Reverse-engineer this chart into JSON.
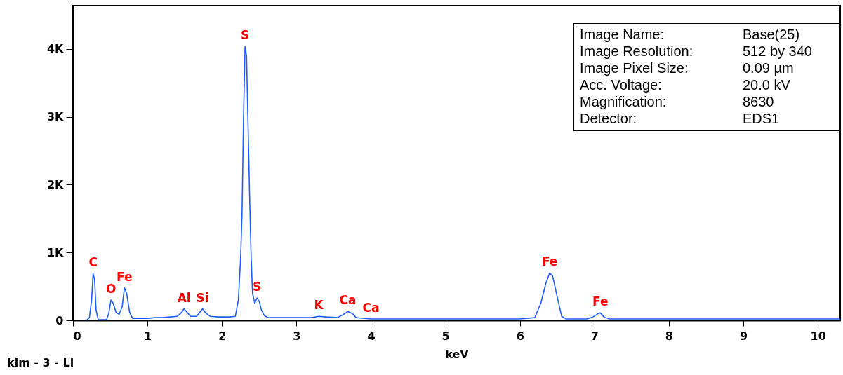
{
  "chart_data": {
    "type": "line",
    "xlabel": "keV",
    "xlim": [
      0,
      10.3
    ],
    "xticks": [
      0,
      1,
      2,
      3,
      4,
      5,
      6,
      7,
      8,
      9,
      10
    ],
    "ylim": [
      0,
      4640
    ],
    "yticks": [
      0,
      {
        "value": 1000,
        "label": "1K"
      },
      {
        "value": 2000,
        "label": "2K"
      },
      {
        "value": 3000,
        "label": "3K"
      },
      {
        "value": 4000,
        "label": "4K"
      }
    ],
    "grid": false,
    "marker": "none",
    "line_style": "solid",
    "x": [
      0.18,
      0.22,
      0.25,
      0.27,
      0.29,
      0.31,
      0.34,
      0.45,
      0.48,
      0.51,
      0.54,
      0.58,
      0.62,
      0.66,
      0.69,
      0.72,
      0.76,
      0.8,
      0.9,
      1.0,
      1.1,
      1.2,
      1.3,
      1.4,
      1.46,
      1.49,
      1.53,
      1.58,
      1.66,
      1.71,
      1.74,
      1.78,
      1.84,
      1.95,
      2.1,
      2.18,
      2.22,
      2.25,
      2.27,
      2.29,
      2.31,
      2.33,
      2.35,
      2.37,
      2.39,
      2.41,
      2.44,
      2.47,
      2.5,
      2.53,
      2.57,
      2.62,
      2.8,
      3.0,
      3.2,
      3.3,
      3.4,
      3.55,
      3.62,
      3.69,
      3.75,
      3.8,
      4.0,
      4.5,
      5.0,
      5.5,
      6.0,
      6.2,
      6.28,
      6.35,
      6.4,
      6.44,
      6.5,
      6.56,
      6.62,
      6.9,
      6.98,
      7.05,
      7.08,
      7.13,
      7.2,
      7.5,
      8,
      8.5,
      9,
      9.5,
      10,
      10.3
    ],
    "series": [
      {
        "color": "#1f5cff",
        "values": [
          0,
          40,
          300,
          690,
          600,
          150,
          10,
          10,
          100,
          300,
          250,
          110,
          90,
          200,
          480,
          400,
          120,
          30,
          30,
          30,
          40,
          40,
          50,
          60,
          120,
          170,
          120,
          60,
          60,
          130,
          170,
          110,
          60,
          50,
          50,
          60,
          300,
          900,
          1600,
          3000,
          4040,
          3900,
          2900,
          1900,
          1000,
          400,
          250,
          330,
          280,
          150,
          70,
          40,
          40,
          40,
          40,
          60,
          50,
          40,
          80,
          130,
          100,
          40,
          20,
          20,
          20,
          20,
          20,
          40,
          250,
          550,
          700,
          650,
          350,
          60,
          20,
          20,
          50,
          100,
          110,
          50,
          20,
          20,
          20,
          20,
          20,
          20,
          20,
          20
        ]
      }
    ],
    "annotations": [
      "klm - 3 - Li",
      "Image Name: Base(25)",
      "Image Resolution: 512 by 340",
      "Image Pixel Size: 0.09 µm",
      "Acc. Voltage: 20.0 kV",
      "Magnification: 8630",
      "Detector: EDS1",
      {
        "text": "C",
        "x": 0.27,
        "y": 690
      },
      {
        "text": "O",
        "x": 0.51,
        "y": 300
      },
      {
        "text": "Fe",
        "x": 0.69,
        "y": 480
      },
      {
        "text": "Al",
        "x": 1.49,
        "y": 170
      },
      {
        "text": "Si",
        "x": 1.74,
        "y": 170
      },
      {
        "text": "S",
        "x": 2.31,
        "y": 4040
      },
      {
        "text": "S",
        "x": 2.47,
        "y": 330
      },
      {
        "text": "K",
        "x": 3.3,
        "y": 60
      },
      {
        "text": "Ca",
        "x": 3.69,
        "y": 130
      },
      {
        "text": "Ca",
        "x": 4.0,
        "y": 20
      },
      {
        "text": "Fe",
        "x": 6.4,
        "y": 700
      },
      {
        "text": "Fe",
        "x": 7.08,
        "y": 110
      }
    ]
  }
}
